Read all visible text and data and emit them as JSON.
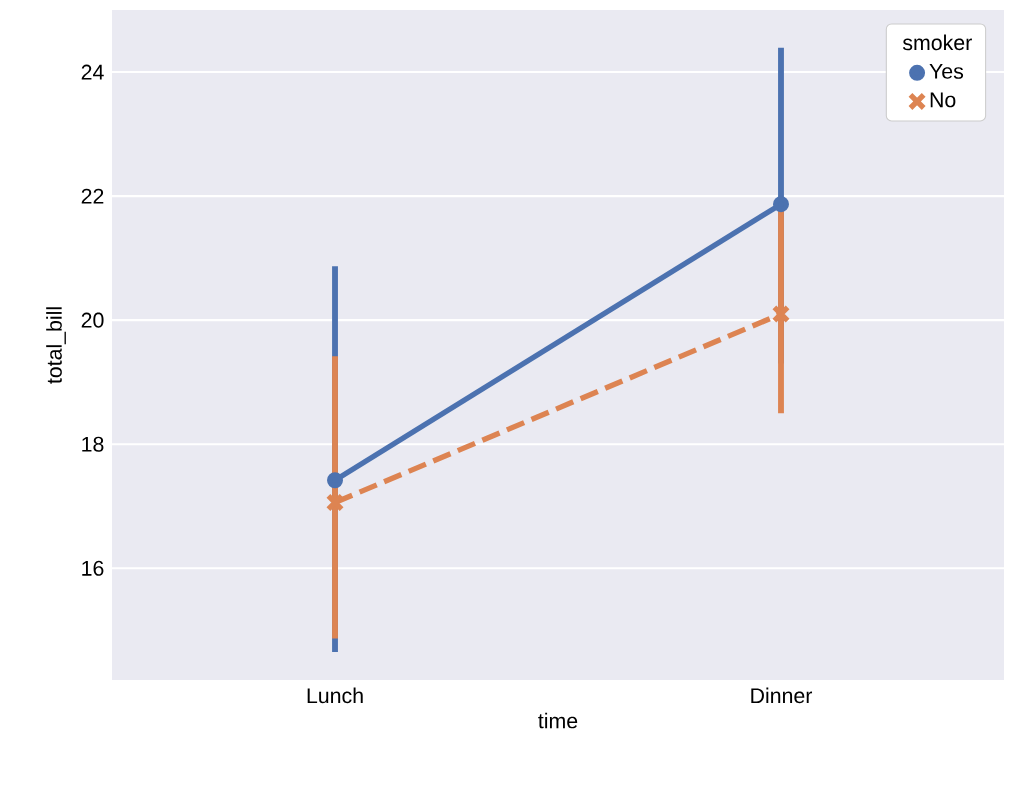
{
  "chart_data": {
    "type": "line",
    "xlabel": "time",
    "ylabel": "total_bill",
    "legend_title": "smoker",
    "categories": [
      "Lunch",
      "Dinner"
    ],
    "series": [
      {
        "name": "Yes",
        "color": "#4c72b0",
        "values": [
          17.42,
          21.87
        ],
        "errors": [
          [
            14.65,
            20.87
          ],
          [
            19.3,
            24.39
          ]
        ],
        "marker": "circle",
        "line_style": "solid"
      },
      {
        "name": "No",
        "color": "#dd8452",
        "values": [
          17.06,
          20.1
        ],
        "errors": [
          [
            14.87,
            19.42
          ],
          [
            18.5,
            21.8
          ]
        ],
        "marker": "cross",
        "line_style": "dashed"
      }
    ],
    "ylim": [
      14.2,
      25.0
    ],
    "yticks": [
      16,
      18,
      20,
      22,
      24
    ],
    "grid": "y",
    "legend": "top right"
  }
}
